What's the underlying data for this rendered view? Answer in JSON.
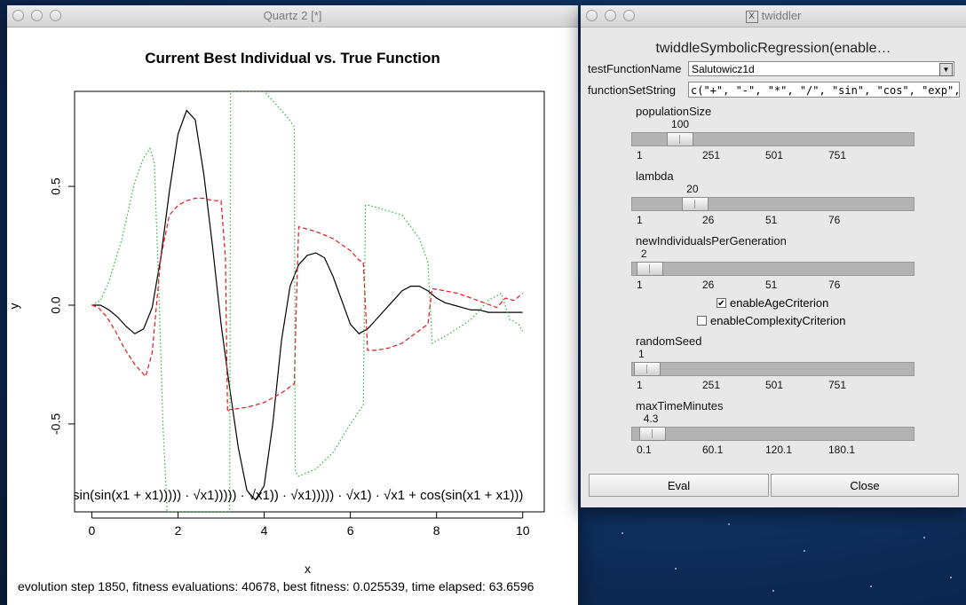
{
  "quartz_window": {
    "title": "Quartz 2 [*]",
    "status": "evolution step 1850, fitness evaluations: 40678, best fitness: 0.025539, time elapsed: 63.6596"
  },
  "chart_data": {
    "type": "line",
    "title": "Current Best Individual vs. True Function",
    "xlabel": "x",
    "ylabel": "y",
    "xlim": [
      -0.4,
      10.5
    ],
    "ylim": [
      -0.87,
      0.9
    ],
    "x_ticks": [
      "0",
      "2",
      "4",
      "6",
      "8",
      "10"
    ],
    "y_ticks": [
      "-0.5",
      "0.0",
      "0.5"
    ],
    "formula_annotation": "sin(sin(x1 + x1))))) · √x1))))) · √x1)) · √x1))))) · √x1) · √x1 + cos(sin(x1 + x1)))",
    "series": [
      {
        "name": "",
        "color": "#000000",
        "style": "solid",
        "x": [
          0,
          0.2,
          0.4,
          0.6,
          0.8,
          1.0,
          1.2,
          1.4,
          1.6,
          1.8,
          2.0,
          2.2,
          2.4,
          2.6,
          2.8,
          3.0,
          3.2,
          3.4,
          3.6,
          3.8,
          4.0,
          4.2,
          4.4,
          4.6,
          4.8,
          5.0,
          5.2,
          5.4,
          5.6,
          5.8,
          6.0,
          6.2,
          6.4,
          6.6,
          6.8,
          7.0,
          7.2,
          7.4,
          7.6,
          7.8,
          8.0,
          8.2,
          8.4,
          8.6,
          8.8,
          9.0,
          9.2,
          9.4,
          9.6,
          9.8,
          10.0
        ],
        "y": [
          0,
          0,
          -0.02,
          -0.05,
          -0.09,
          -0.12,
          -0.1,
          -0.01,
          0.2,
          0.48,
          0.72,
          0.82,
          0.78,
          0.55,
          0.25,
          -0.08,
          -0.35,
          -0.6,
          -0.78,
          -0.82,
          -0.76,
          -0.5,
          -0.15,
          0.08,
          0.17,
          0.21,
          0.22,
          0.2,
          0.12,
          0.02,
          -0.08,
          -0.12,
          -0.1,
          -0.06,
          -0.02,
          0.02,
          0.06,
          0.08,
          0.08,
          0.06,
          0.03,
          0.01,
          0,
          -0.01,
          -0.02,
          -0.02,
          -0.03,
          -0.03,
          -0.03,
          -0.03,
          -0.03
        ]
      },
      {
        "name": "",
        "color": "#e8161d",
        "style": "dashed",
        "x": [
          0,
          0.15,
          0.35,
          0.55,
          0.75,
          1.0,
          1.25,
          1.4,
          1.6,
          1.8,
          2.0,
          2.2,
          2.4,
          2.6,
          2.8,
          3.0,
          3.1,
          3.15,
          3.2,
          3.6,
          4.0,
          4.4,
          4.7,
          4.75,
          4.8,
          5.2,
          5.6,
          6.0,
          6.2,
          6.3,
          6.35,
          6.4,
          6.6,
          6.9,
          7.2,
          7.5,
          7.8,
          7.85,
          7.9,
          8.2,
          8.5,
          8.8,
          9.1,
          9.4,
          9.6,
          9.8,
          10.0
        ],
        "y": [
          0,
          -0.01,
          -0.05,
          -0.11,
          -0.18,
          -0.25,
          -0.3,
          -0.2,
          0.2,
          0.38,
          0.42,
          0.44,
          0.45,
          0.45,
          0.44,
          0.44,
          0.2,
          -0.45,
          -0.44,
          -0.43,
          -0.41,
          -0.37,
          -0.33,
          0.02,
          0.33,
          0.31,
          0.28,
          0.23,
          0.19,
          0.18,
          0,
          -0.19,
          -0.19,
          -0.18,
          -0.16,
          -0.12,
          -0.08,
          0,
          0.07,
          0.06,
          0.05,
          0.03,
          0.01,
          -0.01,
          0.03,
          0.02,
          0.05
        ]
      },
      {
        "name": "",
        "color": "#27b431",
        "style": "dotted",
        "x": [
          0,
          0.2,
          0.4,
          0.7,
          1.0,
          1.2,
          1.35,
          1.45,
          1.55,
          1.65,
          1.75,
          1.8,
          1.85,
          2.0,
          3.2,
          3.22,
          3.3,
          3.6,
          4.0,
          4.5,
          4.7,
          4.72,
          4.8,
          5.2,
          5.6,
          6.0,
          6.3,
          6.35,
          6.45,
          7.2,
          7.6,
          7.8,
          7.85,
          7.9,
          8.3,
          8.8,
          9.2,
          9.5,
          9.7,
          9.9,
          10.0
        ],
        "y": [
          0,
          0.02,
          0.1,
          0.28,
          0.52,
          0.62,
          0.66,
          0.6,
          0.1,
          -0.5,
          -0.87,
          -0.87,
          -0.87,
          -0.87,
          -0.87,
          0.9,
          0.9,
          0.9,
          0.9,
          0.8,
          0.75,
          -0.7,
          -0.72,
          -0.69,
          -0.62,
          -0.5,
          -0.42,
          0.42,
          0.42,
          0.38,
          0.28,
          0.18,
          0,
          -0.16,
          -0.12,
          -0.06,
          0.02,
          0.05,
          -0.06,
          -0.08,
          -0.11
        ]
      }
    ]
  },
  "twiddler": {
    "title": "twiddler",
    "heading": "twiddleSymbolicRegression(enable…",
    "testFunctionName": {
      "label": "testFunctionName",
      "value": "Salutowicz1d"
    },
    "functionSetString": {
      "label": "functionSetString",
      "value": "c(\"+\", \"-\", \"*\", \"/\", \"sin\", \"cos\", \"exp\", \"log\", \"sqrt\")"
    },
    "sliders": [
      {
        "label": "populationSize",
        "value": "100",
        "fraction": 0.13,
        "ticks": [
          "1",
          "251",
          "501",
          "751"
        ]
      },
      {
        "label": "lambda",
        "value": "20",
        "fraction": 0.19,
        "ticks": [
          "1",
          "26",
          "51",
          "76"
        ]
      },
      {
        "label": "newIndividualsPerGeneration",
        "value": "2",
        "fraction": 0.01,
        "ticks": [
          "1",
          "26",
          "51",
          "76"
        ]
      },
      {
        "label": "randomSeed",
        "value": "1",
        "fraction": 0.0,
        "ticks": [
          "1",
          "251",
          "501",
          "751"
        ]
      },
      {
        "label": "maxTimeMinutes",
        "value": "4.3",
        "fraction": 0.02,
        "ticks": [
          "0.1",
          "60.1",
          "120.1",
          "180.1"
        ]
      }
    ],
    "checkboxes": [
      {
        "label": "enableAgeCriterion",
        "checked": true
      },
      {
        "label": "enableComplexityCriterion",
        "checked": false
      }
    ],
    "buttons": {
      "eval": "Eval",
      "close": "Close"
    }
  }
}
